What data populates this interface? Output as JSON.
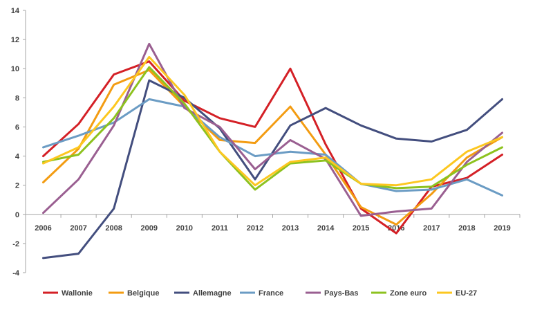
{
  "chart_data": {
    "type": "line",
    "title": "",
    "xlabel": "",
    "ylabel": "",
    "categories": [
      "2006",
      "2007",
      "2008",
      "2009",
      "2010",
      "2011",
      "2012",
      "2013",
      "2014",
      "2015",
      "2016",
      "2017",
      "2018",
      "2019"
    ],
    "ylim": [
      -4,
      14
    ],
    "yticks": [
      -4,
      -2,
      0,
      2,
      4,
      6,
      8,
      10,
      12,
      14
    ],
    "grid": false,
    "legend_position": "bottom",
    "series": [
      {
        "name": "Wallonie",
        "color": "#d42026",
        "values": [
          4.0,
          6.2,
          9.6,
          10.5,
          7.8,
          6.6,
          6.0,
          10.0,
          4.8,
          0.4,
          -1.3,
          1.9,
          2.5,
          4.1
        ]
      },
      {
        "name": "Belgique",
        "color": "#f39c12",
        "values": [
          2.2,
          4.5,
          8.9,
          9.9,
          7.4,
          5.1,
          4.9,
          7.4,
          4.1,
          0.5,
          -0.7,
          1.4,
          3.9,
          5.3
        ]
      },
      {
        "name": "Allemagne",
        "color": "#434e7e",
        "values": [
          -3.0,
          -2.7,
          0.4,
          9.2,
          8.0,
          5.9,
          2.4,
          6.1,
          7.3,
          6.1,
          5.2,
          5.0,
          5.8,
          7.9
        ]
      },
      {
        "name": "France",
        "color": "#6b9cc4",
        "values": [
          4.6,
          5.4,
          6.3,
          7.9,
          7.4,
          5.3,
          4.0,
          4.3,
          4.1,
          2.1,
          1.6,
          1.7,
          2.4,
          1.3
        ]
      },
      {
        "name": "Pays-Bas",
        "color": "#9a5f91",
        "values": [
          0.1,
          2.4,
          6.1,
          11.7,
          7.3,
          6.0,
          3.1,
          5.1,
          3.8,
          -0.1,
          0.2,
          0.4,
          3.6,
          5.6
        ]
      },
      {
        "name": "Zone euro",
        "color": "#8dc21f",
        "values": [
          3.6,
          4.1,
          6.6,
          10.1,
          7.6,
          4.3,
          1.7,
          3.5,
          3.7,
          2.1,
          1.8,
          1.9,
          3.4,
          4.6
        ]
      },
      {
        "name": "EU-27",
        "color": "#fcc720",
        "values": [
          3.5,
          4.6,
          7.4,
          10.8,
          8.2,
          4.3,
          2.0,
          3.6,
          3.9,
          2.1,
          2.0,
          2.4,
          4.3,
          5.3
        ]
      }
    ]
  }
}
